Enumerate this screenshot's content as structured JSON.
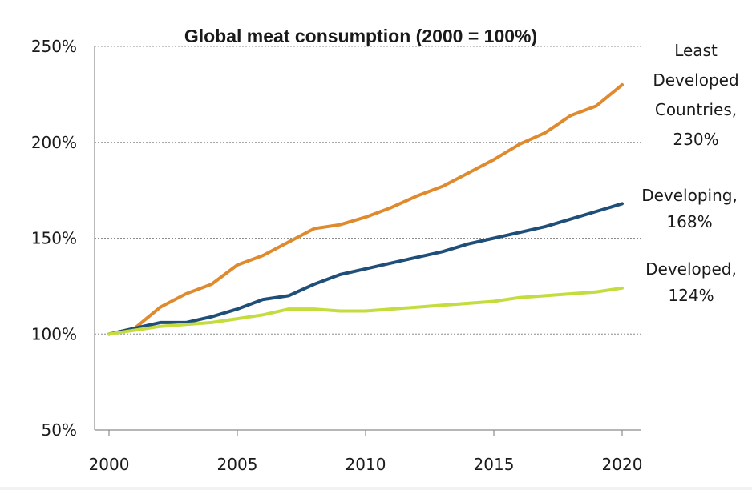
{
  "chart_data": {
    "type": "line",
    "title": "Global meat consumption (2000 = 100%)",
    "xlabel": "",
    "ylabel": "",
    "xlim": [
      2000,
      2020.5
    ],
    "ylim": [
      50,
      250
    ],
    "x_ticks": [
      2000,
      2005,
      2010,
      2015,
      2020
    ],
    "x_tick_labels": [
      "2000",
      "2005",
      "2010",
      "2015",
      "2020"
    ],
    "y_ticks": [
      50,
      100,
      150,
      200,
      250
    ],
    "y_tick_labels": [
      "50%",
      "100%",
      "150%",
      "200%",
      "250%"
    ],
    "grid": "horizontal dotted",
    "legend": "none",
    "x": [
      2000,
      2001,
      2002,
      2003,
      2004,
      2005,
      2006,
      2007,
      2008,
      2009,
      2010,
      2011,
      2012,
      2013,
      2014,
      2015,
      2016,
      2017,
      2018,
      2019,
      2020
    ],
    "series": [
      {
        "color": "#e08a2e",
        "values": [
          100,
          103,
          114,
          121,
          126,
          136,
          141,
          148,
          155,
          157,
          161,
          166,
          172,
          177,
          184,
          191,
          199,
          205,
          214,
          219,
          230
        ],
        "label_lines": [
          "Least",
          "Developed",
          "Countries,",
          "230%"
        ]
      },
      {
        "color": "#1f4e79",
        "values": [
          100,
          103,
          106,
          106,
          109,
          113,
          118,
          120,
          126,
          131,
          134,
          137,
          140,
          143,
          147,
          150,
          153,
          156,
          160,
          164,
          168
        ],
        "label_lines": [
          "Developing,",
          "168%"
        ]
      },
      {
        "color": "#c5dc3e",
        "values": [
          100,
          102,
          104,
          105,
          106,
          108,
          110,
          113,
          113,
          112,
          112,
          113,
          114,
          115,
          116,
          117,
          119,
          120,
          121,
          122,
          124
        ],
        "label_lines": [
          "Developed,",
          "124%"
        ]
      }
    ]
  }
}
